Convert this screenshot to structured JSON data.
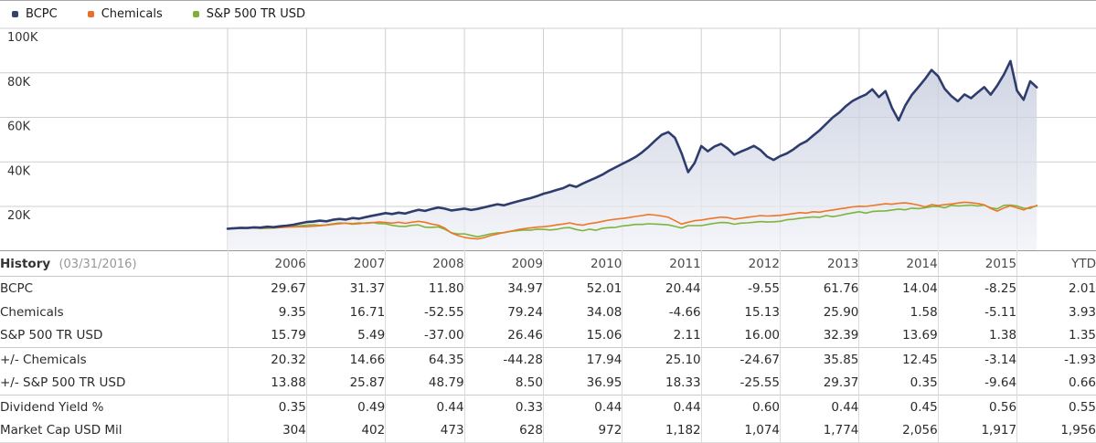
{
  "legend": {
    "items": [
      {
        "label": "BCPC",
        "color": "#35426f"
      },
      {
        "label": "Chemicals",
        "color": "#e86f28"
      },
      {
        "label": "S&P 500 TR USD",
        "color": "#7ab136"
      }
    ]
  },
  "chart_data": {
    "type": "area",
    "x_start": "2006-01",
    "x_end": "2016-03",
    "points_per_year": 12,
    "ylim_k": [
      0,
      110
    ],
    "grid": true,
    "legend_position": "top-left",
    "y_ticks": [
      {
        "label": "100K",
        "value": 100
      },
      {
        "label": "80K",
        "value": 80
      },
      {
        "label": "60K",
        "value": 60
      },
      {
        "label": "40K",
        "value": 40
      },
      {
        "label": "20K",
        "value": 20
      }
    ],
    "x_gridline_years": [
      2006,
      2007,
      2008,
      2009,
      2010,
      2011,
      2012,
      2013,
      2014,
      2015,
      2016
    ],
    "series": [
      {
        "name": "BCPC",
        "color": "#2e3d6e",
        "fill": true,
        "values_k": [
          10.0,
          10.2,
          10.4,
          10.3,
          10.6,
          10.5,
          10.9,
          10.7,
          11.1,
          11.4,
          11.8,
          12.4,
          13.0,
          13.2,
          13.6,
          13.3,
          14.0,
          14.4,
          14.1,
          14.8,
          14.5,
          15.2,
          15.8,
          16.4,
          17.0,
          16.6,
          17.2,
          16.8,
          17.7,
          18.5,
          18.0,
          18.8,
          19.5,
          19.0,
          18.2,
          18.6,
          19.0,
          18.4,
          18.9,
          19.6,
          20.3,
          21.0,
          20.5,
          21.4,
          22.2,
          23.0,
          23.7,
          24.6,
          25.7,
          26.5,
          27.4,
          28.2,
          29.6,
          28.8,
          30.3,
          31.6,
          32.9,
          34.3,
          36.1,
          37.6,
          39.1,
          40.6,
          42.2,
          44.3,
          46.8,
          49.6,
          52.2,
          53.4,
          50.8,
          43.9,
          35.4,
          39.6,
          47.1,
          44.8,
          46.9,
          48.1,
          46.0,
          43.2,
          44.6,
          45.8,
          47.2,
          45.3,
          42.4,
          40.9,
          42.6,
          43.8,
          45.6,
          47.8,
          49.3,
          51.8,
          54.2,
          57.1,
          60.0,
          62.2,
          65.1,
          67.4,
          68.9,
          70.2,
          72.6,
          69.1,
          71.8,
          64.2,
          58.7,
          65.3,
          70.1,
          73.6,
          77.2,
          81.3,
          78.5,
          72.8,
          69.6,
          67.2,
          70.3,
          68.6,
          71.2,
          73.6,
          70.2,
          74.3,
          79.2,
          85.3,
          72.0,
          67.9,
          76.2,
          73.5
        ]
      },
      {
        "name": "Chemicals",
        "color": "#ed7628",
        "fill": false,
        "values_k": [
          10.0,
          10.1,
          10.3,
          10.2,
          10.4,
          10.3,
          10.5,
          10.4,
          10.6,
          10.7,
          10.8,
          10.9,
          10.9,
          11.1,
          11.3,
          11.6,
          11.9,
          12.2,
          12.5,
          12.3,
          12.6,
          12.4,
          12.7,
          13.0,
          12.8,
          12.5,
          12.9,
          12.4,
          12.9,
          13.3,
          12.9,
          12.1,
          11.6,
          10.3,
          8.1,
          6.9,
          6.1,
          5.7,
          5.4,
          6.0,
          6.9,
          7.6,
          8.3,
          8.9,
          9.5,
          10.0,
          10.3,
          10.7,
          10.9,
          11.2,
          11.7,
          12.1,
          12.6,
          11.9,
          11.6,
          12.3,
          12.7,
          13.3,
          13.9,
          14.3,
          14.6,
          15.0,
          15.5,
          15.9,
          16.4,
          16.1,
          15.7,
          15.1,
          13.6,
          12.1,
          12.9,
          13.6,
          13.9,
          14.4,
          14.8,
          15.2,
          15.0,
          14.3,
          14.7,
          15.1,
          15.5,
          15.9,
          15.7,
          15.8,
          16.0,
          16.4,
          16.8,
          17.2,
          17.0,
          17.6,
          17.4,
          18.0,
          18.4,
          18.9,
          19.3,
          19.8,
          20.1,
          20.0,
          20.4,
          20.8,
          21.2,
          21.0,
          21.4,
          21.6,
          21.2,
          20.6,
          19.8,
          20.8,
          20.4,
          20.8,
          21.1,
          21.5,
          21.9,
          21.7,
          21.3,
          20.7,
          19.1,
          17.9,
          19.3,
          20.3,
          19.4,
          18.4,
          19.7,
          20.2
        ]
      },
      {
        "name": "S&P 500 TR USD",
        "color": "#7db43c",
        "fill": false,
        "values_k": [
          10.0,
          10.2,
          10.2,
          10.3,
          10.4,
          10.1,
          10.2,
          10.3,
          10.5,
          10.8,
          11.1,
          11.3,
          11.6,
          11.8,
          11.5,
          11.7,
          12.2,
          12.6,
          12.4,
          12.0,
          12.2,
          12.6,
          12.8,
          12.3,
          12.2,
          11.5,
          11.1,
          11.0,
          11.5,
          11.7,
          10.7,
          10.6,
          10.8,
          9.8,
          8.2,
          7.6,
          7.7,
          7.0,
          6.4,
          7.0,
          7.7,
          8.1,
          8.2,
          8.8,
          9.1,
          9.4,
          9.3,
          9.8,
          9.7,
          9.4,
          9.7,
          10.3,
          10.5,
          9.6,
          9.1,
          9.8,
          9.3,
          10.2,
          10.5,
          10.6,
          11.2,
          11.5,
          11.9,
          11.9,
          12.2,
          12.1,
          11.9,
          11.7,
          11.0,
          10.3,
          11.4,
          11.4,
          11.4,
          11.9,
          12.4,
          12.8,
          12.7,
          12.0,
          12.5,
          12.6,
          12.9,
          13.2,
          13.0,
          13.1,
          13.3,
          14.0,
          14.2,
          14.7,
          15.0,
          15.3,
          15.1,
          15.9,
          15.4,
          15.9,
          16.6,
          17.1,
          17.6,
          17.0,
          17.7,
          17.9,
          18.0,
          18.4,
          18.8,
          18.5,
          19.2,
          19.0,
          19.4,
          19.9,
          20.0,
          19.4,
          20.5,
          20.2,
          20.4,
          20.6,
          20.2,
          20.6,
          19.4,
          18.9,
          20.5,
          20.6,
          20.2,
          19.2,
          19.1,
          20.5
        ]
      }
    ],
    "area_fill": {
      "top": "#b7bfd5",
      "bottom": "#f1f2f7",
      "opacity": 0.75
    },
    "grid_color": "#cfcfcf"
  },
  "table": {
    "title": "History",
    "title_date": "(03/31/2016)",
    "columns": [
      "2006",
      "2007",
      "2008",
      "2009",
      "2010",
      "2011",
      "2012",
      "2013",
      "2014",
      "2015",
      "YTD"
    ],
    "rows": [
      {
        "label": "BCPC",
        "rule_above": false,
        "values": [
          "29.67",
          "31.37",
          "11.80",
          "34.97",
          "52.01",
          "20.44",
          "-9.55",
          "61.76",
          "14.04",
          "-8.25",
          "2.01"
        ]
      },
      {
        "label": "Chemicals",
        "rule_above": false,
        "values": [
          "9.35",
          "16.71",
          "-52.55",
          "79.24",
          "34.08",
          "-4.66",
          "15.13",
          "25.90",
          "1.58",
          "-5.11",
          "3.93"
        ]
      },
      {
        "label": "S&P 500 TR USD",
        "rule_above": false,
        "values": [
          "15.79",
          "5.49",
          "-37.00",
          "26.46",
          "15.06",
          "2.11",
          "16.00",
          "32.39",
          "13.69",
          "1.38",
          "1.35"
        ]
      },
      {
        "label": "+/- Chemicals",
        "rule_above": true,
        "values": [
          "20.32",
          "14.66",
          "64.35",
          "-44.28",
          "17.94",
          "25.10",
          "-24.67",
          "35.85",
          "12.45",
          "-3.14",
          "-1.93"
        ]
      },
      {
        "label": "+/- S&P 500 TR USD",
        "rule_above": false,
        "values": [
          "13.88",
          "25.87",
          "48.79",
          "8.50",
          "36.95",
          "18.33",
          "-25.55",
          "29.37",
          "0.35",
          "-9.64",
          "0.66"
        ]
      },
      {
        "label": "Dividend Yield %",
        "rule_above": true,
        "values": [
          "0.35",
          "0.49",
          "0.44",
          "0.33",
          "0.44",
          "0.44",
          "0.60",
          "0.44",
          "0.45",
          "0.56",
          "0.55"
        ]
      },
      {
        "label": "Market Cap USD Mil",
        "rule_above": false,
        "values": [
          "304",
          "402",
          "473",
          "628",
          "972",
          "1,182",
          "1,074",
          "1,774",
          "2,056",
          "1,917",
          "1,956"
        ]
      }
    ]
  }
}
